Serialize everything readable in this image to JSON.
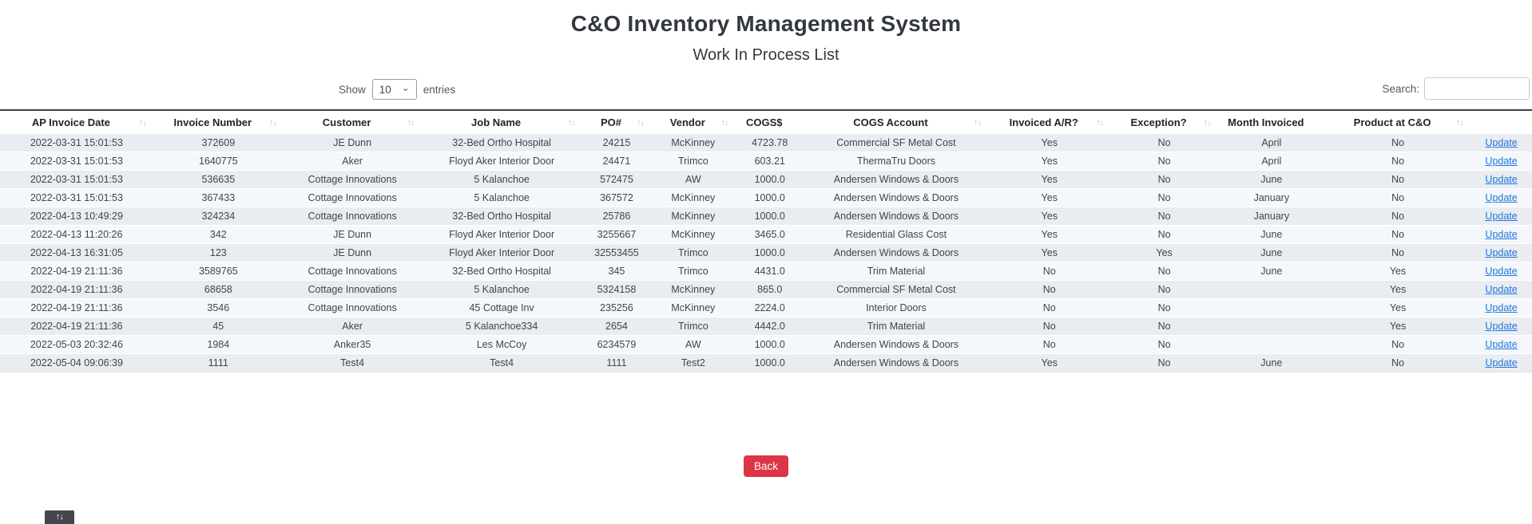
{
  "page": {
    "title": "C&O Inventory Management System",
    "subtitle": "Work In Process List"
  },
  "controls": {
    "show_label": "Show",
    "page_size": "10",
    "entries_label": "entries",
    "search_label": "Search:",
    "search_value": ""
  },
  "icons": {
    "sort": "↑↓",
    "select_chevron": "⌄"
  },
  "table": {
    "columns": [
      {
        "id": "ap-invoice-date",
        "label": "AP Invoice Date",
        "sortable": true
      },
      {
        "id": "invoice-number",
        "label": "Invoice Number",
        "sortable": true
      },
      {
        "id": "customer",
        "label": "Customer",
        "sortable": true
      },
      {
        "id": "job-name",
        "label": "Job Name",
        "sortable": true
      },
      {
        "id": "po-number",
        "label": "PO#",
        "sortable": true
      },
      {
        "id": "vendor",
        "label": "Vendor",
        "sortable": true
      },
      {
        "id": "cogs-amount",
        "label": "COGS$",
        "sortable": false
      },
      {
        "id": "cogs-account",
        "label": "COGS Account",
        "sortable": true
      },
      {
        "id": "invoiced-ar",
        "label": "Invoiced A/R?",
        "sortable": true
      },
      {
        "id": "exception",
        "label": "Exception?",
        "sortable": true
      },
      {
        "id": "month-invoiced",
        "label": "Month Invoiced",
        "sortable": false
      },
      {
        "id": "product-at-co",
        "label": "Product at C&O",
        "sortable": true
      },
      {
        "id": "actions",
        "label": "",
        "sortable": false
      }
    ],
    "action_label": "Update",
    "rows": [
      [
        "2022-03-31 15:01:53",
        "372609",
        "JE Dunn",
        "32-Bed Ortho Hospital",
        "24215",
        "McKinney",
        "4723.78",
        "Commercial SF Metal Cost",
        "Yes",
        "No",
        "April",
        "No"
      ],
      [
        "2022-03-31 15:01:53",
        "1640775",
        "Aker",
        "Floyd Aker Interior Door",
        "24471",
        "Trimco",
        "603.21",
        "ThermaTru Doors",
        "Yes",
        "No",
        "April",
        "No"
      ],
      [
        "2022-03-31 15:01:53",
        "536635",
        "Cottage Innovations",
        "5 Kalanchoe",
        "572475",
        "AW",
        "1000.0",
        "Andersen Windows & Doors",
        "Yes",
        "No",
        "June",
        "No"
      ],
      [
        "2022-03-31 15:01:53",
        "367433",
        "Cottage Innovations",
        "5 Kalanchoe",
        "367572",
        "McKinney",
        "1000.0",
        "Andersen Windows & Doors",
        "Yes",
        "No",
        "January",
        "No"
      ],
      [
        "2022-04-13 10:49:29",
        "324234",
        "Cottage Innovations",
        "32-Bed Ortho Hospital",
        "25786",
        "McKinney",
        "1000.0",
        "Andersen Windows & Doors",
        "Yes",
        "No",
        "January",
        "No"
      ],
      [
        "2022-04-13 11:20:26",
        "342",
        "JE Dunn",
        "Floyd Aker Interior Door",
        "3255667",
        "McKinney",
        "3465.0",
        "Residential Glass Cost",
        "Yes",
        "No",
        "June",
        "No"
      ],
      [
        "2022-04-13 16:31:05",
        "123",
        "JE Dunn",
        "Floyd Aker Interior Door",
        "32553455",
        "Trimco",
        "1000.0",
        "Andersen Windows & Doors",
        "Yes",
        "Yes",
        "June",
        "No"
      ],
      [
        "2022-04-19 21:11:36",
        "3589765",
        "Cottage Innovations",
        "32-Bed Ortho Hospital",
        "345",
        "Trimco",
        "4431.0",
        "Trim Material",
        "No",
        "No",
        "June",
        "Yes"
      ],
      [
        "2022-04-19 21:11:36",
        "68658",
        "Cottage Innovations",
        "5 Kalanchoe",
        "5324158",
        "McKinney",
        "865.0",
        "Commercial SF Metal Cost",
        "No",
        "No",
        "",
        "Yes"
      ],
      [
        "2022-04-19 21:11:36",
        "3546",
        "Cottage Innovations",
        "45 Cottage Inv",
        "235256",
        "McKinney",
        "2224.0",
        "Interior Doors",
        "No",
        "No",
        "",
        "Yes"
      ],
      [
        "2022-04-19 21:11:36",
        "45",
        "Aker",
        "5 Kalanchoe334",
        "2654",
        "Trimco",
        "4442.0",
        "Trim Material",
        "No",
        "No",
        "",
        "Yes"
      ],
      [
        "2022-05-03 20:32:46",
        "1984",
        "Anker35",
        "Les McCoy",
        "6234579",
        "AW",
        "1000.0",
        "Andersen Windows & Doors",
        "No",
        "No",
        "",
        "No"
      ],
      [
        "2022-05-04 09:06:39",
        "1111",
        "Test4",
        "Test4",
        "1111",
        "Test2",
        "1000.0",
        "Andersen Windows & Doors",
        "Yes",
        "No",
        "June",
        "No"
      ]
    ]
  },
  "footer": {
    "back_label": "Back"
  },
  "tooltip": {
    "text": "↑↓"
  },
  "colors": {
    "accent": "#dc3545",
    "link": "#2176d9",
    "stripe_odd": "#e9edf1",
    "stripe_even": "#f4f8fc"
  }
}
